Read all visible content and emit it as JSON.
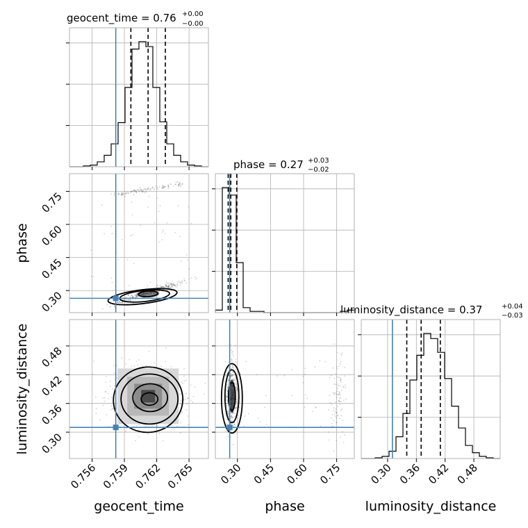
{
  "chart_data": {
    "type": "corner",
    "parameters": [
      "geocent_time",
      "phase",
      "luminosity_distance"
    ],
    "titles": [
      {
        "name": "geocent_time",
        "value": "0.76",
        "upper": "+0.00",
        "lower": "−0.00"
      },
      {
        "name": "phase",
        "value": "0.27",
        "upper": "+0.03",
        "lower": "−0.02"
      },
      {
        "name": "luminosity_distance",
        "value": "0.37",
        "upper": "+0.04",
        "lower": "−0.03"
      }
    ],
    "axis_labels": [
      "geocent_time",
      "phase",
      "luminosity_distance"
    ],
    "ranges": [
      [
        0.7539,
        0.7668
      ],
      [
        0.2,
        0.83
      ],
      [
        0.245,
        0.535
      ]
    ],
    "ticks": [
      {
        "values": [
          0.756,
          0.759,
          0.762,
          0.765
        ],
        "labels": [
          "0.756",
          "0.759",
          "0.762",
          "0.765"
        ]
      },
      {
        "values": [
          0.3,
          0.45,
          0.6,
          0.75
        ],
        "labels": [
          "0.30",
          "0.45",
          "0.60",
          "0.75"
        ]
      },
      {
        "values": [
          0.3,
          0.36,
          0.42,
          0.48
        ],
        "labels": [
          "0.30",
          "0.36",
          "0.42",
          "0.48"
        ]
      }
    ],
    "truths": [
      0.7582,
      0.265,
      0.31
    ],
    "quantiles": [
      [
        0.7596,
        0.7612,
        0.7628
      ],
      [
        0.258,
        0.27,
        0.297
      ],
      [
        0.34,
        0.37,
        0.41
      ]
    ],
    "histograms": [
      {
        "edges_start": 0.7539,
        "bin_width": 0.000645,
        "counts": [
          0,
          0,
          1,
          2,
          6,
          14,
          28,
          54,
          97,
          144,
          153,
          147,
          97,
          55,
          28,
          14,
          6,
          2,
          1,
          0
        ]
      },
      {
        "edges_start": 0.2,
        "bin_width": 0.0315,
        "counts": [
          2,
          100,
          94,
          40,
          4,
          1,
          1,
          0,
          0,
          0,
          0,
          0,
          0,
          0,
          0,
          0,
          0,
          0,
          1,
          2
        ]
      },
      {
        "edges_start": 0.245,
        "bin_width": 0.0145,
        "counts": [
          0,
          0,
          1,
          3,
          10,
          30,
          62,
          108,
          142,
          172,
          165,
          146,
          110,
          72,
          42,
          18,
          8,
          3,
          1,
          0
        ]
      }
    ],
    "pairs": [
      {
        "x": "geocent_time",
        "y": "phase",
        "cloud_center": [
          0.7612,
          0.29
        ],
        "cloud_note": "correlated streak plus secondary band near phase 0.75"
      },
      {
        "x": "geocent_time",
        "y": "luminosity_distance",
        "cloud_center": [
          0.7612,
          0.375
        ]
      },
      {
        "x": "phase",
        "y": "luminosity_distance",
        "cloud_center": [
          0.275,
          0.375
        ]
      }
    ],
    "truth_color": "#4682b4",
    "grid": true
  }
}
